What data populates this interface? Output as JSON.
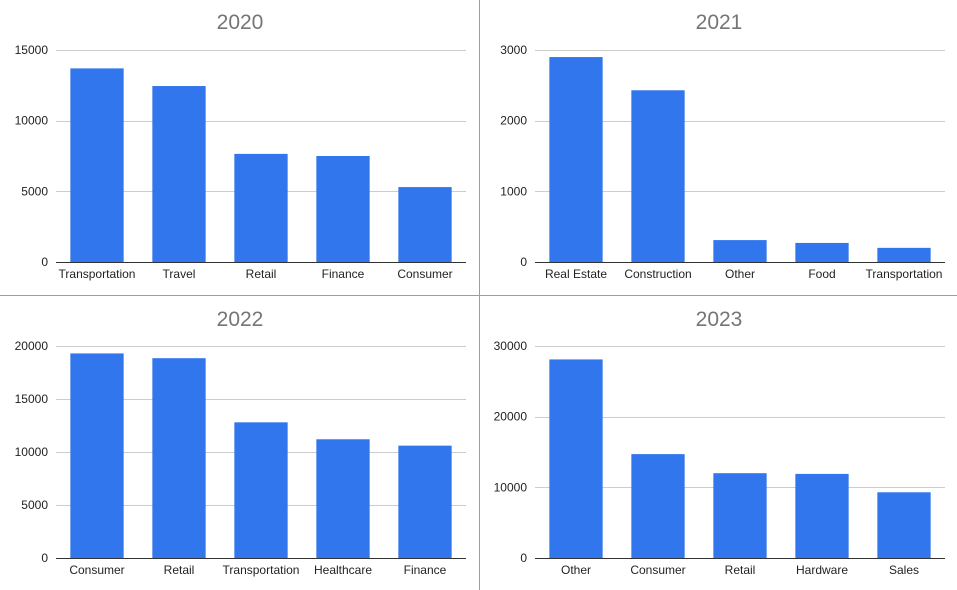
{
  "theme": {
    "bar_color": "#3176ec",
    "title_color": "#757575",
    "grid_color": "#cccccc",
    "text_color": "#222222"
  },
  "chart_data": [
    {
      "type": "bar",
      "title": "2020",
      "categories": [
        "Transportation",
        "Travel",
        "Retail",
        "Finance",
        "Consumer"
      ],
      "values": [
        13700,
        12450,
        7650,
        7500,
        5300
      ],
      "ylim": [
        0,
        15000
      ],
      "yticks": [
        0,
        5000,
        10000,
        15000
      ],
      "grid": true,
      "legend": "none"
    },
    {
      "type": "bar",
      "title": "2021",
      "categories": [
        "Real Estate",
        "Construction",
        "Other",
        "Food",
        "Transportation"
      ],
      "values": [
        2900,
        2430,
        310,
        270,
        200
      ],
      "ylim": [
        0,
        3000
      ],
      "yticks": [
        0,
        1000,
        2000,
        3000
      ],
      "grid": true,
      "legend": "none"
    },
    {
      "type": "bar",
      "title": "2022",
      "categories": [
        "Consumer",
        "Retail",
        "Transportation",
        "Healthcare",
        "Finance"
      ],
      "values": [
        19300,
        18850,
        12800,
        11200,
        10600
      ],
      "ylim": [
        0,
        20000
      ],
      "yticks": [
        0,
        5000,
        10000,
        15000,
        20000
      ],
      "grid": true,
      "legend": "none"
    },
    {
      "type": "bar",
      "title": "2023",
      "categories": [
        "Other",
        "Consumer",
        "Retail",
        "Hardware",
        "Sales"
      ],
      "values": [
        28100,
        14700,
        12000,
        11900,
        9300
      ],
      "ylim": [
        0,
        30000
      ],
      "yticks": [
        0,
        10000,
        20000,
        30000
      ],
      "grid": true,
      "legend": "none"
    }
  ]
}
